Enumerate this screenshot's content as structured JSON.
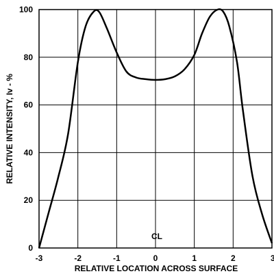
{
  "chart_data": {
    "type": "line",
    "title": "",
    "xlabel": "RELATIVE LOCATION ACROSS SURFACE",
    "ylabel": "RELATIVE INTENSITY, Iv - %",
    "xlim": [
      -3,
      3
    ],
    "ylim": [
      0,
      100
    ],
    "x_ticks": [
      -3,
      -2,
      -1,
      0,
      1,
      2,
      3
    ],
    "x_tick_labels": [
      "-3",
      "-2",
      "-1",
      "0",
      "1",
      "2",
      "3"
    ],
    "y_ticks": [
      0,
      20,
      40,
      60,
      80,
      100
    ],
    "y_tick_labels": [
      "0",
      "20",
      "40",
      "60",
      "80",
      "100"
    ],
    "grid": true,
    "centerline_label": "CL",
    "series": [
      {
        "color": "#000000",
        "points": [
          [
            -3.0,
            0
          ],
          [
            -2.75,
            15
          ],
          [
            -2.5,
            30
          ],
          [
            -2.25,
            48
          ],
          [
            -2.0,
            78
          ],
          [
            -1.8,
            93
          ],
          [
            -1.6,
            99
          ],
          [
            -1.45,
            99
          ],
          [
            -1.25,
            92
          ],
          [
            -1.0,
            82
          ],
          [
            -0.75,
            74
          ],
          [
            -0.5,
            71.5
          ],
          [
            -0.25,
            70.8
          ],
          [
            0.0,
            70.5
          ],
          [
            0.25,
            70.8
          ],
          [
            0.5,
            72
          ],
          [
            0.75,
            75
          ],
          [
            1.0,
            81
          ],
          [
            1.2,
            90
          ],
          [
            1.4,
            97
          ],
          [
            1.6,
            100
          ],
          [
            1.75,
            99
          ],
          [
            1.9,
            93
          ],
          [
            2.1,
            78
          ],
          [
            2.25,
            58
          ],
          [
            2.5,
            30
          ],
          [
            2.75,
            14
          ],
          [
            3.0,
            2
          ]
        ]
      }
    ]
  }
}
